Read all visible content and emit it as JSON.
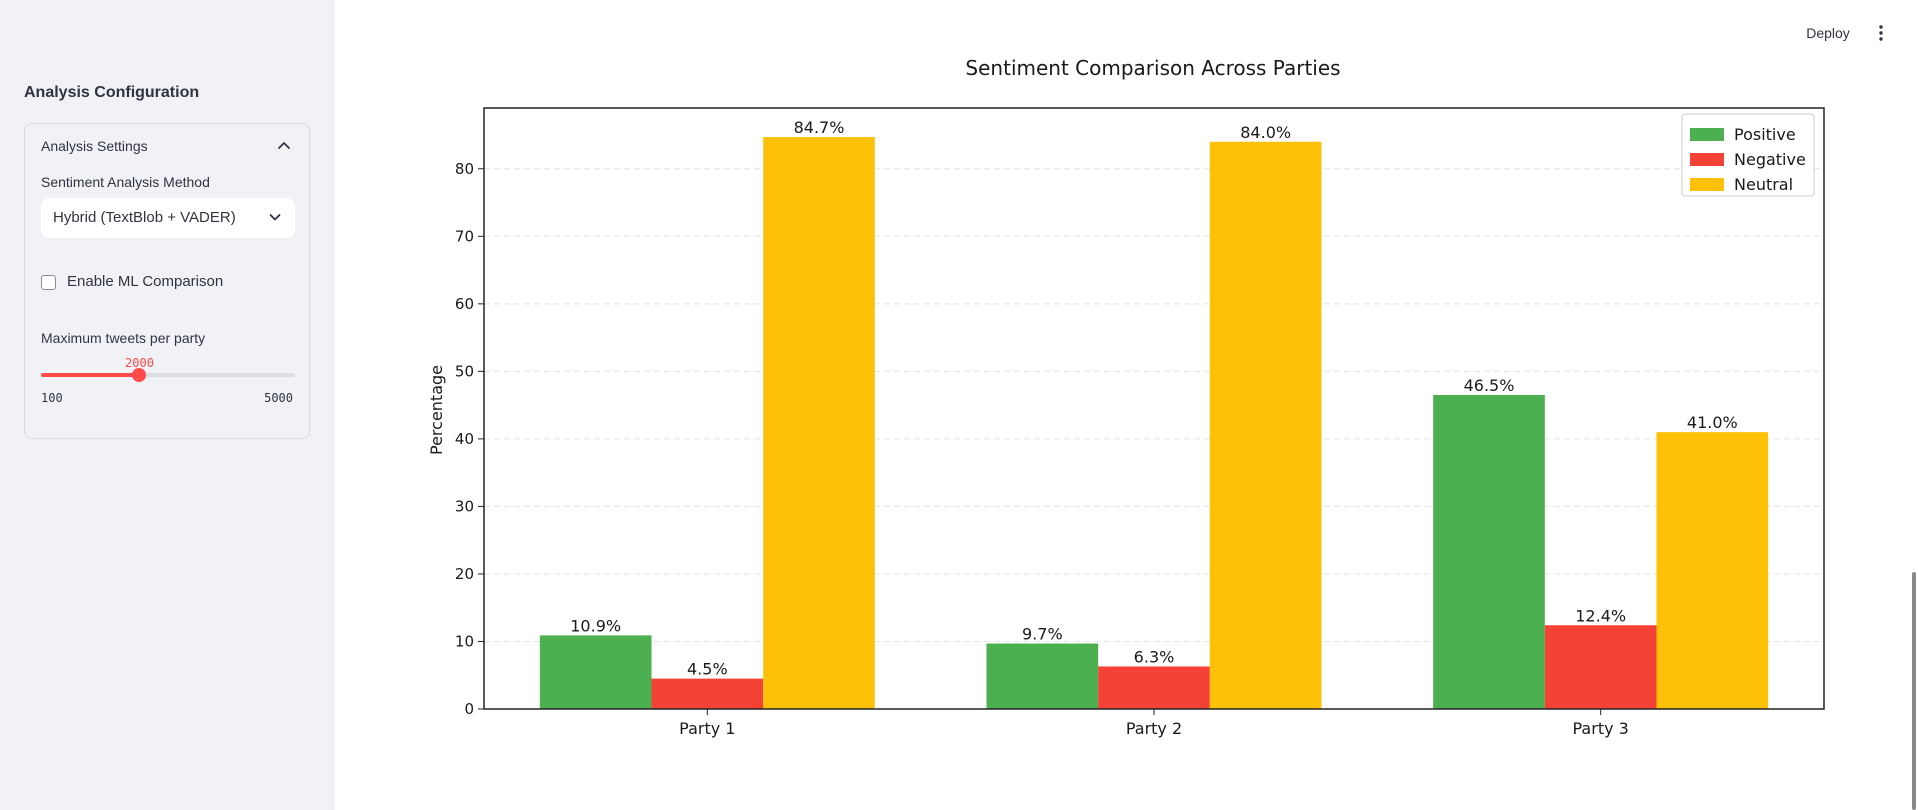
{
  "sidebar": {
    "title": "Analysis Configuration",
    "expander": {
      "header": "Analysis Settings",
      "method_label": "Sentiment Analysis Method",
      "method_value": "Hybrid (TextBlob + VADER)",
      "ml_checkbox_label": "Enable ML Comparison",
      "ml_checked": false,
      "slider": {
        "label": "Maximum tweets per party",
        "value": 2000,
        "value_text": "2000",
        "min": 100,
        "min_text": "100",
        "max": 5000,
        "max_text": "5000"
      }
    }
  },
  "toolbar": {
    "deploy_label": "Deploy",
    "menu_icon": "vertical-dots-icon"
  },
  "colors": {
    "accent": "#ff4b4b",
    "positive": "#4caf50",
    "negative": "#f44336",
    "neutral": "#ffc107"
  },
  "chart_data": {
    "type": "bar",
    "title": "Sentiment Comparison Across Parties",
    "xlabel": "",
    "ylabel": "Percentage",
    "ylim": [
      0,
      89
    ],
    "yticks": [
      0,
      10,
      20,
      30,
      40,
      50,
      60,
      70,
      80
    ],
    "grid": "y-dashed",
    "legend": "top-right",
    "categories": [
      "Party 1",
      "Party 2",
      "Party 3"
    ],
    "series": [
      {
        "name": "Positive",
        "values": [
          10.9,
          9.7,
          46.5
        ],
        "labels": [
          "10.9%",
          "9.7%",
          "46.5%"
        ],
        "color": "#4caf50"
      },
      {
        "name": "Negative",
        "values": [
          4.5,
          6.3,
          12.4
        ],
        "labels": [
          "4.5%",
          "6.3%",
          "12.4%"
        ],
        "color": "#f44336"
      },
      {
        "name": "Neutral",
        "values": [
          84.7,
          84.0,
          41.0
        ],
        "labels": [
          "84.7%",
          "84.0%",
          "41.0%"
        ],
        "color": "#ffc107"
      }
    ]
  }
}
